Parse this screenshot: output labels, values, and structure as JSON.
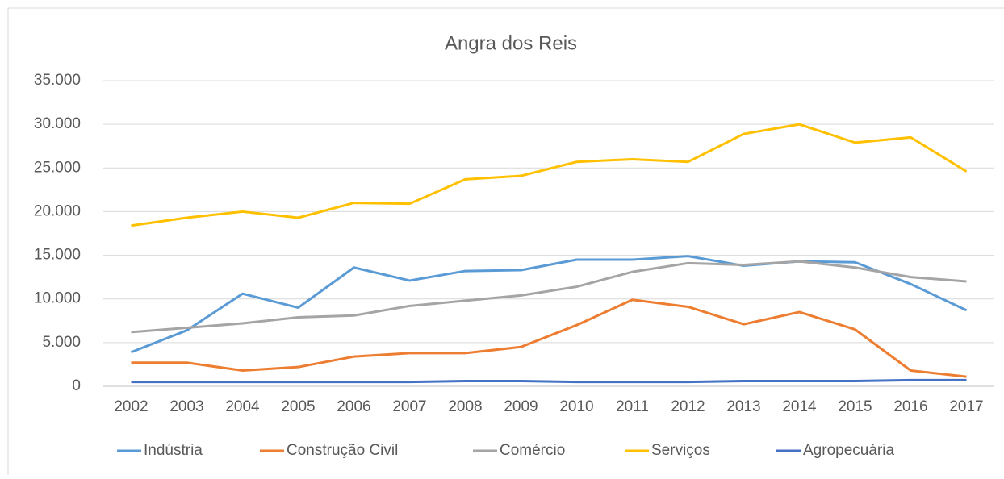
{
  "chart_data": {
    "type": "line",
    "title": "Angra dos Reis",
    "categories": [
      "2002",
      "2003",
      "2004",
      "2005",
      "2006",
      "2007",
      "2008",
      "2009",
      "2010",
      "2011",
      "2012",
      "2013",
      "2014",
      "2015",
      "2016",
      "2017"
    ],
    "series": [
      {
        "name": "Indústria",
        "color": "#5b9bd5",
        "values": [
          3900,
          6400,
          10600,
          9000,
          13600,
          12100,
          13200,
          13300,
          14500,
          14500,
          14900,
          13800,
          14300,
          14200,
          11700,
          8700
        ]
      },
      {
        "name": "Construção Civil",
        "color": "#ed7d31",
        "values": [
          2700,
          2700,
          1800,
          2200,
          3400,
          3800,
          3800,
          4500,
          7000,
          9900,
          9100,
          7100,
          8500,
          6500,
          1800,
          1100
        ]
      },
      {
        "name": "Comércio",
        "color": "#a5a5a5",
        "values": [
          6200,
          6700,
          7200,
          7900,
          8100,
          9200,
          9800,
          10400,
          11400,
          13100,
          14100,
          13900,
          14300,
          13600,
          12500,
          12000
        ]
      },
      {
        "name": "Serviços",
        "color": "#ffc000",
        "values": [
          18400,
          19300,
          20000,
          19300,
          21000,
          20900,
          23700,
          24100,
          25700,
          26000,
          25700,
          28900,
          30000,
          27900,
          28500,
          24600
        ]
      },
      {
        "name": "Agropecuária",
        "color": "#4472c4",
        "values": [
          500,
          500,
          500,
          500,
          500,
          500,
          600,
          600,
          500,
          500,
          500,
          600,
          600,
          600,
          700,
          700
        ]
      }
    ],
    "ylim": [
      0,
      35000
    ],
    "yticks": [
      0,
      {
        "value": 5000,
        "label": "5.000"
      },
      {
        "value": 10000,
        "label": "10.000"
      },
      {
        "value": 15000,
        "label": "15.000"
      },
      {
        "value": 20000,
        "label": "20.000"
      },
      {
        "value": 25000,
        "label": "25.000"
      },
      {
        "value": 30000,
        "label": "30.000"
      },
      {
        "value": 35000,
        "label": "35.000"
      }
    ],
    "grid": true,
    "legend": "bottom"
  }
}
